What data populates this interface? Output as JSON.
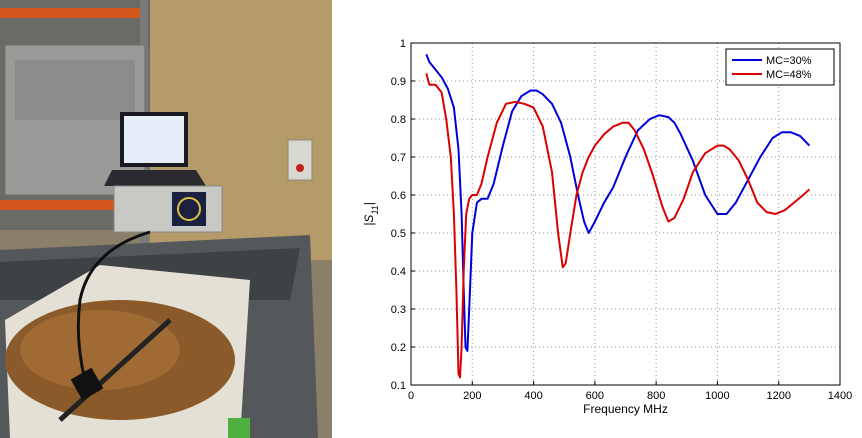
{
  "photo": {
    "description_icon": "lab-photo-icon"
  },
  "chart_data": {
    "type": "line",
    "title": "",
    "xlabel": "Frequency MHz",
    "ylabel": "|S11|",
    "xlim": [
      0,
      1400
    ],
    "ylim": [
      0.1,
      1
    ],
    "xticks": [
      0,
      200,
      400,
      600,
      800,
      1000,
      1200,
      1400
    ],
    "yticks": [
      0.1,
      0.2,
      0.3,
      0.4,
      0.5,
      0.6,
      0.7,
      0.8,
      0.9,
      1
    ],
    "grid": true,
    "legend_position": "top-right",
    "series": [
      {
        "name": "MC=30%",
        "color": "#0000dd",
        "x": [
          50,
          60,
          80,
          100,
          120,
          140,
          155,
          165,
          172,
          178,
          184,
          190,
          200,
          215,
          230,
          250,
          270,
          300,
          330,
          360,
          390,
          410,
          430,
          460,
          490,
          520,
          545,
          565,
          580,
          600,
          630,
          660,
          700,
          740,
          780,
          810,
          840,
          860,
          880,
          920,
          960,
          1000,
          1030,
          1060,
          1100,
          1140,
          1180,
          1210,
          1240,
          1270,
          1300
        ],
        "y": [
          0.97,
          0.95,
          0.93,
          0.91,
          0.88,
          0.83,
          0.72,
          0.55,
          0.35,
          0.2,
          0.19,
          0.3,
          0.5,
          0.58,
          0.59,
          0.59,
          0.63,
          0.73,
          0.82,
          0.86,
          0.875,
          0.875,
          0.865,
          0.84,
          0.79,
          0.7,
          0.6,
          0.53,
          0.5,
          0.53,
          0.58,
          0.62,
          0.7,
          0.77,
          0.8,
          0.81,
          0.805,
          0.79,
          0.76,
          0.69,
          0.6,
          0.55,
          0.55,
          0.58,
          0.64,
          0.7,
          0.75,
          0.765,
          0.765,
          0.755,
          0.73
        ]
      },
      {
        "name": "MC=48%",
        "color": "#dd0000",
        "x": [
          50,
          60,
          80,
          100,
          115,
          130,
          140,
          148,
          155,
          160,
          165,
          172,
          180,
          190,
          200,
          215,
          230,
          250,
          280,
          310,
          340,
          370,
          400,
          430,
          460,
          480,
          495,
          505,
          520,
          540,
          560,
          580,
          600,
          630,
          660,
          690,
          710,
          730,
          760,
          790,
          820,
          840,
          860,
          890,
          920,
          960,
          1000,
          1020,
          1040,
          1070,
          1100,
          1130,
          1160,
          1190,
          1220,
          1250,
          1280,
          1300
        ],
        "y": [
          0.92,
          0.89,
          0.89,
          0.87,
          0.8,
          0.7,
          0.55,
          0.35,
          0.13,
          0.12,
          0.2,
          0.4,
          0.55,
          0.59,
          0.6,
          0.6,
          0.63,
          0.7,
          0.79,
          0.84,
          0.845,
          0.84,
          0.83,
          0.78,
          0.66,
          0.5,
          0.41,
          0.42,
          0.5,
          0.6,
          0.66,
          0.7,
          0.73,
          0.76,
          0.78,
          0.79,
          0.79,
          0.77,
          0.72,
          0.65,
          0.57,
          0.53,
          0.54,
          0.59,
          0.66,
          0.71,
          0.73,
          0.73,
          0.72,
          0.69,
          0.64,
          0.58,
          0.555,
          0.55,
          0.56,
          0.58,
          0.6,
          0.615
        ]
      }
    ]
  }
}
